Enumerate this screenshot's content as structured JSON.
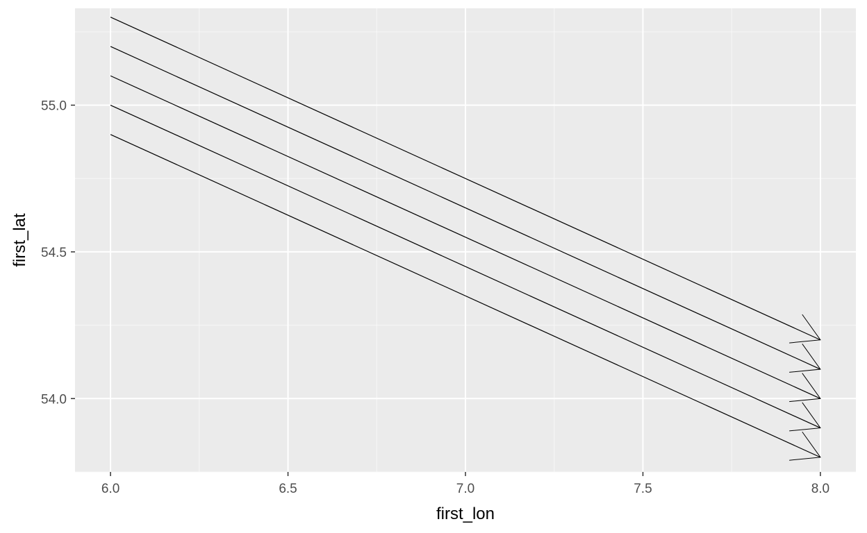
{
  "chart_data": {
    "type": "segment",
    "xlabel": "first_lon",
    "ylabel": "first_lat",
    "xlim": [
      5.9,
      8.1
    ],
    "ylim": [
      53.75,
      55.33
    ],
    "x_ticks": [
      6.0,
      6.5,
      7.0,
      7.5,
      8.0
    ],
    "x_tick_labels": [
      "6.0",
      "6.5",
      "7.0",
      "7.5",
      "8.0"
    ],
    "y_ticks": [
      54.0,
      54.5,
      55.0
    ],
    "y_tick_labels": [
      "54.0",
      "54.5",
      "55.0"
    ],
    "x_minor_ticks": [
      6.25,
      6.75,
      7.25,
      7.75
    ],
    "y_minor_ticks": [
      53.75,
      54.25,
      54.75,
      55.25
    ],
    "grid": true,
    "arrows": true,
    "segments": [
      {
        "x": 6.0,
        "y": 55.3,
        "xend": 8.0,
        "yend": 54.2
      },
      {
        "x": 6.0,
        "y": 55.2,
        "xend": 8.0,
        "yend": 54.1
      },
      {
        "x": 6.0,
        "y": 55.1,
        "xend": 8.0,
        "yend": 54.0
      },
      {
        "x": 6.0,
        "y": 55.0,
        "xend": 8.0,
        "yend": 53.9
      },
      {
        "x": 6.0,
        "y": 54.9,
        "xend": 8.0,
        "yend": 53.8
      }
    ],
    "colors": {
      "panel_background": "#ebebeb",
      "grid_major": "#ffffff",
      "grid_minor": "#f7f7f7",
      "segment": "#000000",
      "tick": "#333333"
    }
  }
}
